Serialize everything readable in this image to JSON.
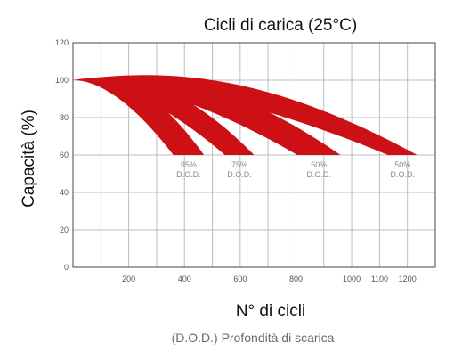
{
  "chart_data": {
    "type": "area",
    "title": "Cicli di carica (25°C)",
    "ylabel": "Capacità (%)",
    "xlabel": "N° di cicli",
    "subtitle": "(D.O.D.) Profondità di scarica",
    "xlim": [
      0,
      1300
    ],
    "ylim": [
      0,
      120
    ],
    "x_ticks": [
      "200",
      "400",
      "600",
      "800",
      "1000",
      "1100",
      "1200"
    ],
    "y_ticks": [
      "0",
      "20",
      "40",
      "60",
      "80",
      "100",
      "120"
    ],
    "grid": true,
    "colors": {
      "band": "#cc1016",
      "grid": "#bdbdbd",
      "axis": "#444444"
    },
    "series": [
      {
        "pct": "95%",
        "unit": "D.O.D.",
        "start": [
          0,
          100
        ],
        "end_cycles": [
          360,
          470
        ],
        "end_capacity": 60
      },
      {
        "pct": "75%",
        "unit": "D.O.D.",
        "start": [
          0,
          100
        ],
        "end_cycles": [
          545,
          650
        ],
        "end_capacity": 60
      },
      {
        "pct": "60%",
        "unit": "D.O.D.",
        "start": [
          0,
          100
        ],
        "end_cycles": [
          805,
          960
        ],
        "end_capacity": 60
      },
      {
        "pct": "50%",
        "unit": "D.O.D.",
        "start": [
          0,
          100
        ],
        "end_cycles": [
          1130,
          1235
        ],
        "end_capacity": 60
      }
    ]
  }
}
